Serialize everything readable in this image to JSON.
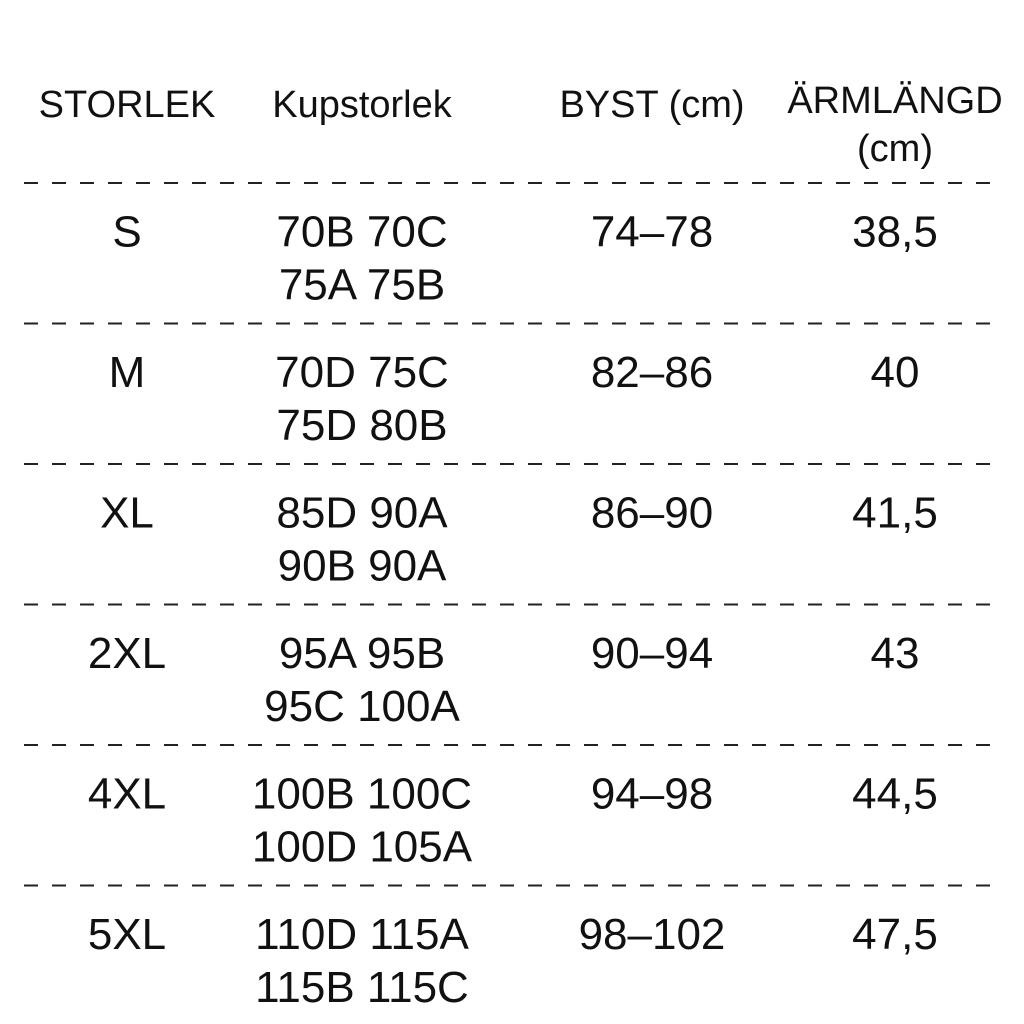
{
  "table": {
    "header": [
      "STORLEK",
      "Kupstorlek",
      "BYST (cm)",
      [
        "ÄRMLÄNGD",
        "(cm)"
      ]
    ],
    "rows": [
      [
        "S",
        [
          "70B 70C",
          "75A 75B"
        ],
        "74–78",
        "38,5"
      ],
      [
        "M",
        [
          "70D 75C",
          "75D 80B"
        ],
        "82–86",
        "40"
      ],
      [
        "XL",
        [
          "85D 90A",
          "90B 90A"
        ],
        "86–90",
        "41,5"
      ],
      [
        "2XL",
        [
          "95A 95B",
          "95C 100A"
        ],
        "90–94",
        "43"
      ],
      [
        "4XL",
        [
          "100B 100C",
          "100D 105A"
        ],
        "94–98",
        "44,5"
      ],
      [
        "5XL",
        [
          "110D 115A",
          "115B 115C"
        ],
        "98–102",
        "47,5"
      ]
    ]
  }
}
